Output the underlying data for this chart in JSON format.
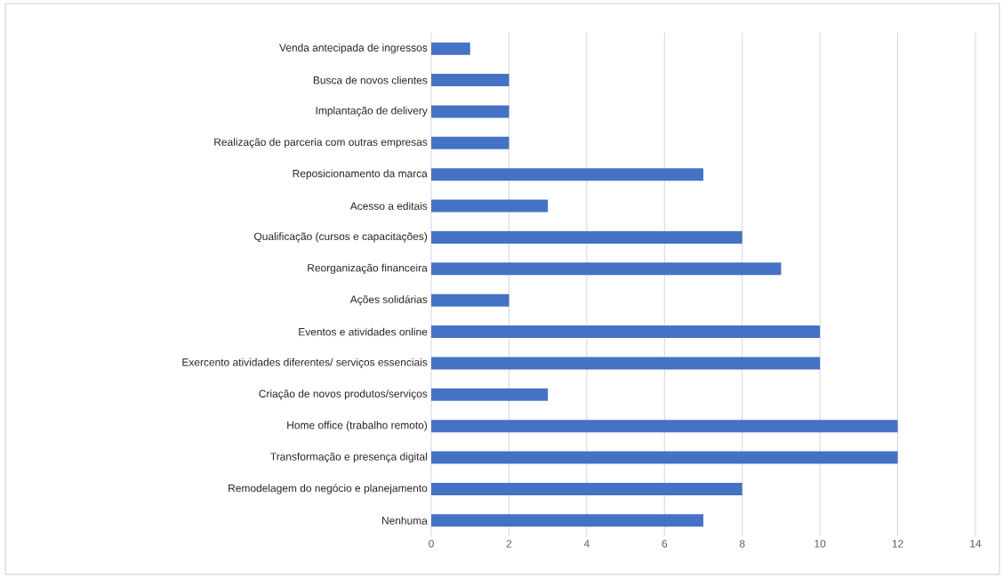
{
  "chart_data": {
    "type": "bar",
    "orientation": "horizontal",
    "categories": [
      "Venda antecipada de ingressos",
      "Busca de novos clientes",
      "Implantação de delivery",
      "Realização de parceria com outras empresas",
      "Reposicionamento da marca",
      "Acesso a editais",
      "Qualificação (cursos e capacitações)",
      "Reorganização financeira",
      "Ações solidárias",
      "Eventos e atividades online",
      "Exercento atividades diferentes/ serviços essenciais",
      "Criação de novos produtos/serviços",
      "Home office (trabalho remoto)",
      "Transformação e presença digital",
      "Remodelagem do negócio e planejamento",
      "Nenhuma"
    ],
    "values": [
      1,
      2,
      2,
      2,
      7,
      3,
      8,
      9,
      2,
      10,
      10,
      3,
      12,
      12,
      8,
      7
    ],
    "color": "#4472c4",
    "xlim": [
      0,
      14
    ],
    "xticks": [
      0,
      2,
      4,
      6,
      8,
      10,
      12,
      14
    ],
    "grid": "x"
  }
}
